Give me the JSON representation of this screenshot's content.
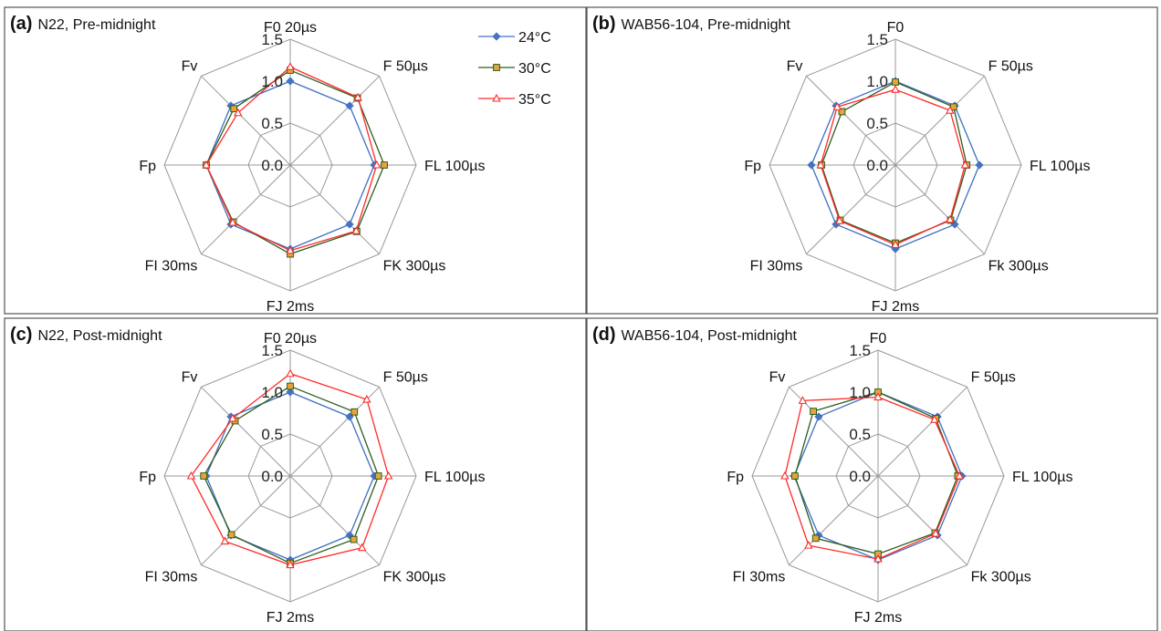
{
  "colors": {
    "24C": "#4472C4",
    "30C": "#2D5E1E",
    "35C": "#FF2A2A",
    "grid": "#999999",
    "marker30": "#E8A33A"
  },
  "legend": [
    {
      "label": "24°C",
      "marker": "diamond",
      "color": "#4472C4"
    },
    {
      "label": "30°C",
      "marker": "square",
      "color": "#2D5E1E"
    },
    {
      "label": "35°C",
      "marker": "triangle",
      "color": "#FF2A2A"
    }
  ],
  "chart_data": [
    {
      "type": "radar",
      "panel_letter": "(a)",
      "title": "N22, Pre-midnight",
      "categories": [
        "F0 20µs",
        "F 50µs",
        "FL 100µs",
        "FK 300µs",
        "FJ 2ms",
        "FI 30ms",
        "Fp",
        "Fv"
      ],
      "radial_ticks": [
        "0.0",
        "0.5",
        "1.0",
        "1.5"
      ],
      "rlim": [
        0,
        1.5
      ],
      "legend_shown": true,
      "series": [
        {
          "name": "24°C",
          "values": [
            1.0,
            1.0,
            1.0,
            1.0,
            1.0,
            1.0,
            1.0,
            1.0
          ]
        },
        {
          "name": "30°C",
          "values": [
            1.13,
            1.13,
            1.12,
            1.12,
            1.06,
            0.96,
            1.0,
            0.95
          ]
        },
        {
          "name": "35°C",
          "values": [
            1.17,
            1.14,
            1.03,
            1.11,
            1.02,
            0.97,
            1.0,
            0.88
          ]
        }
      ]
    },
    {
      "type": "radar",
      "panel_letter": "(b)",
      "title": "WAB56-104, Pre-midnight",
      "categories": [
        "F0",
        "F 50µs",
        "FL 100µs",
        "Fk 300µs",
        "FJ 2ms",
        "FI 30ms",
        "Fp",
        "Fv"
      ],
      "radial_ticks": [
        "0.0",
        "0.5",
        "1.0",
        "1.5"
      ],
      "rlim": [
        0,
        1.5
      ],
      "legend_shown": false,
      "series": [
        {
          "name": "24°C",
          "values": [
            1.0,
            1.0,
            1.0,
            1.0,
            1.0,
            1.0,
            1.0,
            1.0
          ]
        },
        {
          "name": "30°C",
          "values": [
            0.99,
            0.98,
            0.85,
            0.93,
            0.93,
            0.93,
            0.88,
            0.9
          ]
        },
        {
          "name": "35°C",
          "values": [
            0.9,
            0.92,
            0.83,
            0.92,
            0.95,
            0.94,
            0.89,
            0.98
          ]
        }
      ]
    },
    {
      "type": "radar",
      "panel_letter": "(c)",
      "title": "N22, Post-midnight",
      "categories": [
        "F0 20µs",
        "F 50µs",
        "FL 100µs",
        "FK 300µs",
        "FJ 2ms",
        "FI 30ms",
        "Fp",
        "Fv"
      ],
      "radial_ticks": [
        "0.0",
        "0.5",
        "1.0",
        "1.5"
      ],
      "rlim": [
        0,
        1.5
      ],
      "legend_shown": false,
      "series": [
        {
          "name": "24°C",
          "values": [
            1.0,
            1.0,
            1.0,
            1.0,
            1.0,
            1.0,
            1.0,
            1.0
          ]
        },
        {
          "name": "30°C",
          "values": [
            1.07,
            1.08,
            1.05,
            1.07,
            1.04,
            0.99,
            1.03,
            0.93
          ]
        },
        {
          "name": "35°C",
          "values": [
            1.22,
            1.29,
            1.17,
            1.21,
            1.06,
            1.1,
            1.18,
            0.97
          ]
        }
      ]
    },
    {
      "type": "radar",
      "panel_letter": "(d)",
      "title": "WAB56-104, Post-midnight",
      "categories": [
        "F0",
        "F 50µs",
        "FL 100µs",
        "Fk 300µs",
        "FJ 2ms",
        "FI 30ms",
        "Fp",
        "Fv"
      ],
      "radial_ticks": [
        "0.0",
        "0.5",
        "1.0",
        "1.5"
      ],
      "rlim": [
        0,
        1.5
      ],
      "legend_shown": false,
      "series": [
        {
          "name": "24°C",
          "values": [
            1.0,
            1.0,
            1.0,
            1.0,
            1.0,
            1.0,
            1.0,
            1.0
          ]
        },
        {
          "name": "30°C",
          "values": [
            1.0,
            0.97,
            0.95,
            0.96,
            0.93,
            1.05,
            0.99,
            1.09
          ]
        },
        {
          "name": "35°C",
          "values": [
            0.94,
            0.95,
            0.97,
            0.97,
            0.99,
            1.17,
            1.11,
            1.27
          ]
        }
      ]
    }
  ]
}
